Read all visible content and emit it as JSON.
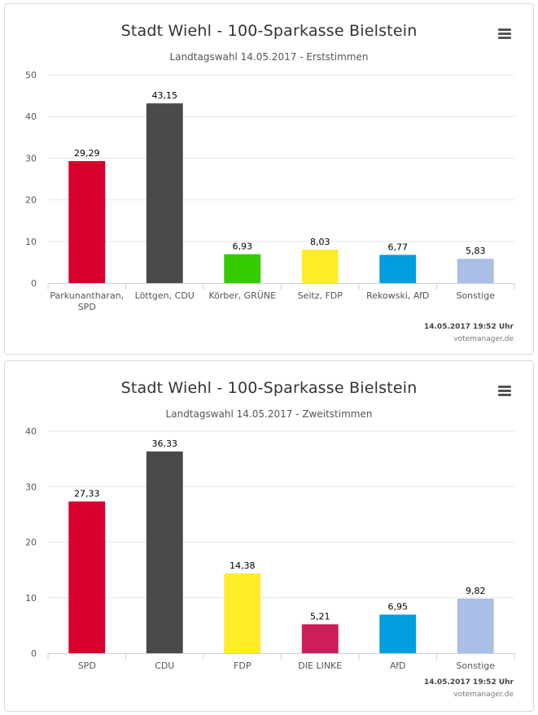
{
  "charts": [
    {
      "title": "Stadt Wiehl - 100-Sparkasse Bielstein",
      "subtitle": "Landtagswahl 14.05.2017 - Erststimmen",
      "credit_time": "14.05.2017 19:52 Uhr",
      "credit_site": "votemanager.de",
      "menu_icon": "hamburger-menu-icon"
    },
    {
      "title": "Stadt Wiehl - 100-Sparkasse Bielstein",
      "subtitle": "Landtagswahl 14.05.2017 - Zweitstimmen",
      "credit_time": "14.05.2017 19:52 Uhr",
      "credit_site": "votemanager.de",
      "menu_icon": "hamburger-menu-icon"
    }
  ],
  "chart_data": [
    {
      "type": "bar",
      "title": "Stadt Wiehl - 100-Sparkasse Bielstein",
      "subtitle": "Landtagswahl 14.05.2017 - Erststimmen",
      "categories": [
        [
          "Parkunantharan,",
          "SPD"
        ],
        [
          "Löttgen, CDU"
        ],
        [
          "Körber, GRÜNE"
        ],
        [
          "Seitz, FDP"
        ],
        [
          "Rekowski, AfD"
        ],
        [
          "Sonstige"
        ]
      ],
      "values": [
        29.29,
        43.15,
        6.93,
        8.03,
        6.77,
        5.83
      ],
      "value_labels": [
        "29,29",
        "43,15",
        "6,93",
        "8,03",
        "6,77",
        "5,83"
      ],
      "colors": [
        "#d8002d",
        "#4a4a4a",
        "#33cc00",
        "#ffed2a",
        "#009ee0",
        "#aabfe6"
      ],
      "ylim": [
        0,
        50
      ],
      "yticks": [
        0,
        10,
        20,
        30,
        40,
        50
      ],
      "grid": true,
      "legend": false
    },
    {
      "type": "bar",
      "title": "Stadt Wiehl - 100-Sparkasse Bielstein",
      "subtitle": "Landtagswahl 14.05.2017 - Zweitstimmen",
      "categories": [
        [
          "SPD"
        ],
        [
          "CDU"
        ],
        [
          "FDP"
        ],
        [
          "DIE LINKE"
        ],
        [
          "AfD"
        ],
        [
          "Sonstige"
        ]
      ],
      "values": [
        27.33,
        36.33,
        14.38,
        5.21,
        6.95,
        9.82
      ],
      "value_labels": [
        "27,33",
        "36,33",
        "14,38",
        "5,21",
        "6,95",
        "9,82"
      ],
      "colors": [
        "#d8002d",
        "#4a4a4a",
        "#ffed2a",
        "#cc1e5a",
        "#009ee0",
        "#aabfe6"
      ],
      "ylim": [
        0,
        40
      ],
      "yticks": [
        0,
        10,
        20,
        30,
        40
      ],
      "grid": true,
      "legend": false
    }
  ]
}
